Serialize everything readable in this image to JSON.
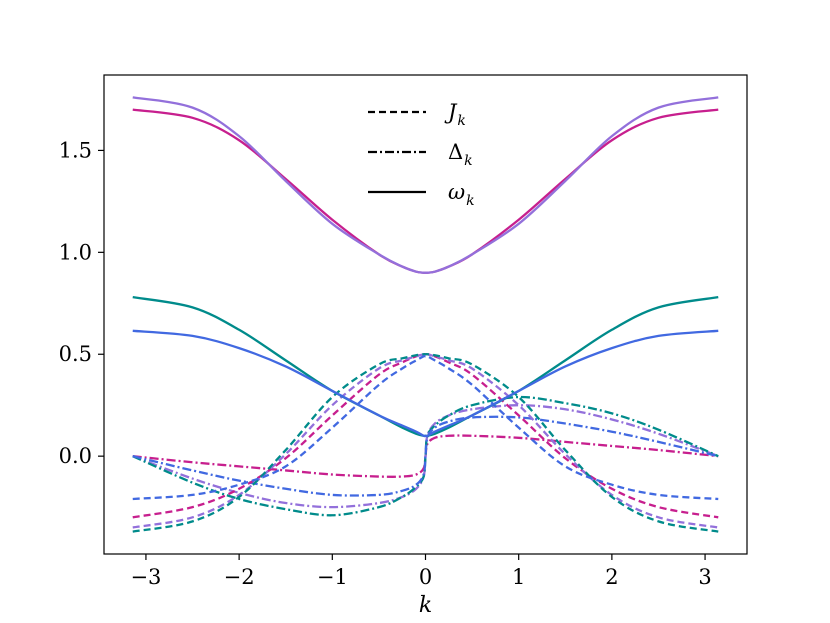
{
  "chart_data": {
    "type": "line",
    "xlabel": "k",
    "ylabel": "",
    "xlim": [
      -3.45,
      3.45
    ],
    "ylim": [
      -0.48,
      1.87
    ],
    "x_ticks": [
      -3,
      -2,
      -1,
      0,
      1,
      2,
      3
    ],
    "x_tick_labels": [
      "−3",
      "−2",
      "−1",
      "0",
      "1",
      "2",
      "3"
    ],
    "y_ticks": [
      0.0,
      0.5,
      1.0,
      1.5
    ],
    "y_tick_labels": [
      "0.0",
      "0.5",
      "1.0",
      "1.5"
    ],
    "grid": false,
    "legend": {
      "placement": "top-center",
      "entries": [
        {
          "style": "dashed",
          "symbol": "J",
          "subscript": "k"
        },
        {
          "style": "dashdot",
          "symbol": "Δ",
          "subscript": "k"
        },
        {
          "style": "solid",
          "symbol": "ω",
          "subscript": "k"
        }
      ]
    },
    "colors": {
      "magenta": "#c71f8e",
      "lavender": "#9370db",
      "teal": "#008b8b",
      "blue": "#4169e1"
    },
    "x": [
      -3.1416,
      -2.5,
      -2.0,
      -1.5,
      -1.0,
      -0.5,
      -0.25,
      -0.1,
      -0.02,
      0.0,
      0.02,
      0.1,
      0.25,
      0.5,
      1.0,
      1.5,
      2.0,
      2.5,
      3.1416
    ],
    "series": [
      {
        "color": "magenta",
        "style": "solid",
        "values": [
          1.7,
          1.66,
          1.55,
          1.36,
          1.16,
          0.99,
          0.93,
          0.905,
          0.9,
          0.9,
          0.9,
          0.905,
          0.93,
          0.99,
          1.16,
          1.36,
          1.55,
          1.66,
          1.7
        ]
      },
      {
        "color": "lavender",
        "style": "solid",
        "values": [
          1.76,
          1.71,
          1.57,
          1.35,
          1.14,
          0.99,
          0.93,
          0.905,
          0.9,
          0.9,
          0.9,
          0.905,
          0.93,
          0.99,
          1.14,
          1.35,
          1.57,
          1.71,
          1.76
        ]
      },
      {
        "color": "teal",
        "style": "solid",
        "values": [
          0.78,
          0.73,
          0.62,
          0.47,
          0.32,
          0.2,
          0.14,
          0.11,
          0.1,
          0.1,
          0.1,
          0.11,
          0.14,
          0.2,
          0.32,
          0.47,
          0.62,
          0.73,
          0.78
        ]
      },
      {
        "color": "blue",
        "style": "solid",
        "values": [
          0.615,
          0.59,
          0.53,
          0.44,
          0.32,
          0.2,
          0.15,
          0.12,
          0.1,
          0.1,
          0.1,
          0.12,
          0.15,
          0.2,
          0.32,
          0.44,
          0.53,
          0.59,
          0.615
        ]
      },
      {
        "color": "magenta",
        "style": "dashed",
        "values": [
          -0.3,
          -0.25,
          -0.16,
          -0.01,
          0.2,
          0.4,
          0.46,
          0.49,
          0.5,
          0.5,
          0.5,
          0.49,
          0.46,
          0.4,
          0.2,
          -0.01,
          -0.16,
          -0.25,
          -0.3
        ]
      },
      {
        "color": "lavender",
        "style": "dashed",
        "values": [
          -0.35,
          -0.3,
          -0.19,
          0.01,
          0.25,
          0.43,
          0.47,
          0.49,
          0.5,
          0.5,
          0.5,
          0.49,
          0.47,
          0.43,
          0.25,
          0.01,
          -0.19,
          -0.3,
          -0.35
        ]
      },
      {
        "color": "teal",
        "style": "dashed",
        "values": [
          -0.37,
          -0.32,
          -0.2,
          0.03,
          0.29,
          0.45,
          0.48,
          0.495,
          0.5,
          0.5,
          0.5,
          0.495,
          0.48,
          0.45,
          0.29,
          0.03,
          -0.2,
          -0.32,
          -0.37
        ]
      },
      {
        "color": "blue",
        "style": "dashed",
        "values": [
          -0.21,
          -0.19,
          -0.14,
          -0.05,
          0.14,
          0.35,
          0.43,
          0.47,
          0.49,
          0.49,
          0.49,
          0.47,
          0.43,
          0.35,
          0.14,
          -0.05,
          -0.14,
          -0.19,
          -0.21
        ]
      },
      {
        "color": "magenta",
        "style": "dashdot",
        "values": [
          0.0,
          -0.03,
          -0.05,
          -0.07,
          -0.09,
          -0.1,
          -0.1,
          -0.09,
          -0.06,
          0.0,
          0.06,
          0.09,
          0.1,
          0.1,
          0.09,
          0.07,
          0.05,
          0.03,
          0.0
        ]
      },
      {
        "color": "lavender",
        "style": "dashdot",
        "values": [
          0.0,
          -0.11,
          -0.18,
          -0.23,
          -0.25,
          -0.23,
          -0.2,
          -0.16,
          -0.1,
          0.0,
          0.1,
          0.16,
          0.2,
          0.23,
          0.25,
          0.23,
          0.18,
          0.11,
          0.0
        ]
      },
      {
        "color": "teal",
        "style": "dashdot",
        "values": [
          0.0,
          -0.13,
          -0.21,
          -0.26,
          -0.29,
          -0.25,
          -0.2,
          -0.15,
          -0.1,
          0.0,
          0.1,
          0.15,
          0.2,
          0.25,
          0.29,
          0.26,
          0.21,
          0.13,
          0.0
        ]
      },
      {
        "color": "blue",
        "style": "dashdot",
        "values": [
          0.0,
          -0.07,
          -0.12,
          -0.16,
          -0.19,
          -0.19,
          -0.17,
          -0.14,
          -0.09,
          0.0,
          0.09,
          0.14,
          0.17,
          0.19,
          0.19,
          0.16,
          0.12,
          0.07,
          0.0
        ]
      }
    ]
  }
}
